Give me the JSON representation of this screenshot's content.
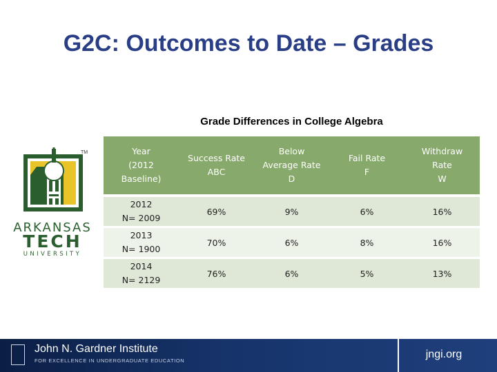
{
  "slide": {
    "title": "G2C: Outcomes to Date – Grades"
  },
  "table": {
    "caption": "Grade Differences in College Algebra",
    "header": {
      "year": [
        "Year",
        "(2012",
        "Baseline)"
      ],
      "success": [
        "Success Rate",
        "ABC"
      ],
      "below": [
        "Below",
        "Average Rate",
        "D"
      ],
      "fail": [
        "Fail Rate",
        "F"
      ],
      "withdraw": [
        "Withdraw",
        "Rate",
        "W"
      ]
    },
    "rows": [
      {
        "year": "2012",
        "n": "N= 2009",
        "success": "69%",
        "below": "9%",
        "fail": "6%",
        "withdraw": "16%"
      },
      {
        "year": "2013",
        "n": "N= 1900",
        "success": "70%",
        "below": "6%",
        "fail": "8%",
        "withdraw": "16%"
      },
      {
        "year": "2014",
        "n": "N= 2129",
        "success": "76%",
        "below": "6%",
        "fail": "5%",
        "withdraw": "13%"
      }
    ]
  },
  "logo": {
    "line1": "ARKANSAS",
    "line2": "TECH",
    "line3": "UNIVERSITY",
    "tm": "TM",
    "colors": {
      "green": "#2b5e2e",
      "gold": "#e8c32a"
    }
  },
  "footer": {
    "institute_name": "John N. Gardner Institute",
    "institute_tagline": "FOR EXCELLENCE IN UNDERGRADUATE EDUCATION",
    "url": "jngi.org"
  },
  "colors": {
    "title": "#2a3e86",
    "header_bg": "#87a96b",
    "row_odd": "#dfe8d7",
    "row_even": "#eef3ea",
    "footer_bg": "#16336a"
  }
}
